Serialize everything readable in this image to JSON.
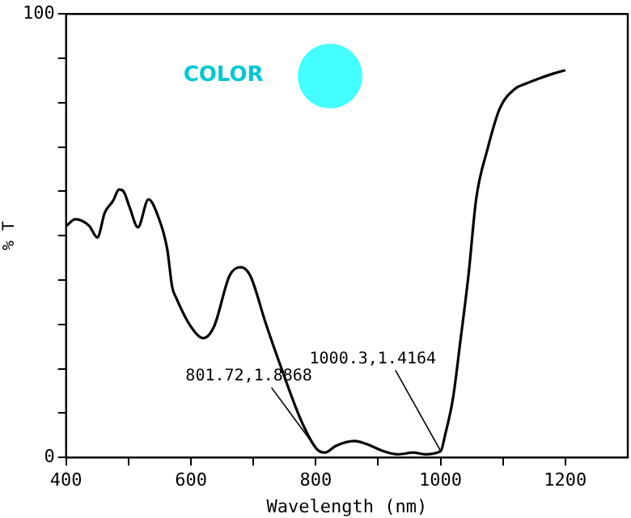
{
  "chart_data": {
    "type": "line",
    "xlabel": "Wavelength (nm)",
    "ylabel": "% T",
    "xlim": [
      400,
      1300
    ],
    "xticks": [
      400,
      {
        "value": 500,
        "label": null
      },
      600,
      {
        "value": 700,
        "label": null
      },
      800,
      {
        "value": 900,
        "label": null
      },
      1000,
      {
        "value": 1100,
        "label": null
      },
      1200
    ],
    "ylim": [
      0,
      100
    ],
    "yticks": [
      0,
      {
        "value": 10,
        "label": null
      },
      {
        "value": 20,
        "label": null
      },
      {
        "value": 30,
        "label": null
      },
      {
        "value": 40,
        "label": null
      },
      {
        "value": 50,
        "label": null
      },
      {
        "value": 60,
        "label": null
      },
      {
        "value": 70,
        "label": null
      },
      {
        "value": 80,
        "label": null
      },
      {
        "value": 90,
        "label": null
      },
      100
    ],
    "grid": false,
    "legend": false,
    "marker": "none",
    "line_style": "solid",
    "series": [
      {
        "color": "#000000",
        "x": [
          400,
          415,
          437,
          450,
          462,
          475,
          485,
          492,
          502,
          515,
          532,
          547,
          562,
          570,
          577,
          600,
          620,
          637,
          662,
          680,
          695,
          720,
          745,
          777,
          801.72,
          815,
          832,
          862,
          882,
          907,
          932,
          957,
          975,
          1000.3,
          1007,
          1020,
          1032,
          1045,
          1057,
          1075,
          1095,
          1120,
          1137,
          1157,
          1182,
          1200
        ],
        "values": [
          52.2,
          53.7,
          52.2,
          49.6,
          55.2,
          57.8,
          60.4,
          60,
          56.3,
          51.9,
          58.2,
          54.5,
          47,
          38.4,
          35.8,
          29.5,
          26.9,
          29.5,
          41,
          42.9,
          41,
          30.2,
          20.1,
          8.2,
          1.8868,
          1.1,
          2.6,
          3.7,
          3,
          1.5,
          0.7,
          1.1,
          0.7,
          1.4164,
          4.9,
          13.4,
          26.5,
          41.4,
          58.2,
          69.4,
          78.7,
          83.2,
          84.3,
          85.4,
          86.6,
          87.3
        ]
      }
    ],
    "annotations": [
      "COLOR",
      {
        "text": "801.72,1.8868",
        "x": 801.72,
        "y": 1.8868
      },
      {
        "text": "1000.3,1.4164",
        "x": 1000.3,
        "y": 1.4164
      }
    ]
  }
}
